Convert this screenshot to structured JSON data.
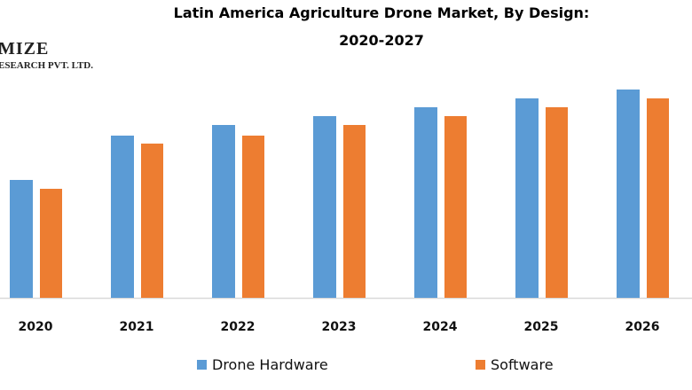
{
  "logo": {
    "line1": "MIZE",
    "line2": "ESEARCH PVT. LTD."
  },
  "chart_data": {
    "type": "bar",
    "title_line1": "Latin America Agriculture Drone Market, By Design:",
    "title_line2": "2020-2027",
    "categories": [
      "2020",
      "2021",
      "2022",
      "2023",
      "2024",
      "2025",
      "2026"
    ],
    "series": [
      {
        "name": "Drone Hardware",
        "color": "#5B9BD5",
        "values": [
          133,
          183,
          195,
          205,
          215,
          225,
          235
        ]
      },
      {
        "name": "Software",
        "color": "#ED7D31",
        "values": [
          123,
          174,
          183,
          195,
          205,
          215,
          225
        ]
      }
    ],
    "value_units": "relative (no value axis shown)",
    "ylim": [
      0,
      240
    ],
    "grid": false,
    "legend_position": "bottom"
  }
}
